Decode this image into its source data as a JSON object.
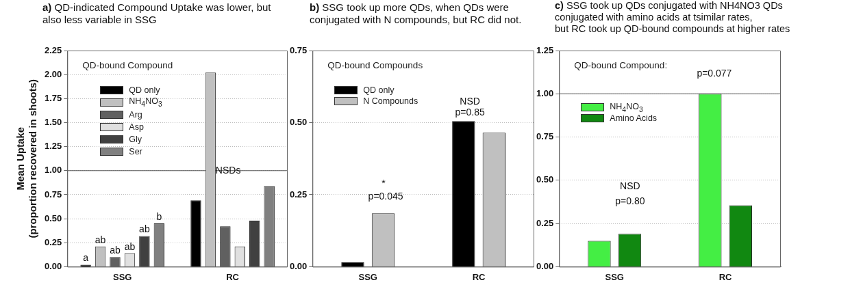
{
  "chart_data": [
    {
      "type": "bar",
      "title": "a) QD-indicated Compound Uptake was lower, but also less variable in SSG",
      "ylabel": "Mean Uptake\n(proportion recovered in shoots)",
      "legend_title": "QD-bound Compound",
      "legend": "top left",
      "grid": "y",
      "categories": [
        "SSG",
        "RC"
      ],
      "ylim": [
        0,
        2.25
      ],
      "yticks": [
        {
          "value": 0,
          "label": "0.00"
        },
        {
          "value": 0.25,
          "label": "0.25"
        },
        {
          "value": 0.5,
          "label": "0.50"
        },
        {
          "value": 0.75,
          "label": "0.75"
        },
        {
          "value": 1,
          "label": "1.00"
        },
        {
          "value": 1.25,
          "label": "1.25"
        },
        {
          "value": 1.5,
          "label": "1.50"
        },
        {
          "value": 1.75,
          "label": "1.75"
        },
        {
          "value": 2,
          "label": "2.00"
        },
        {
          "value": 2.25,
          "label": "2.25"
        }
      ],
      "series": [
        {
          "name": "QD only",
          "color": "#000000",
          "values": [
            0.02,
            0.69
          ],
          "value_labels": [
            "a",
            null
          ]
        },
        {
          "name": "NH$_{4}$NO$_{3}$",
          "color": "#c0c0c0",
          "values": [
            0.21,
            2.02
          ],
          "value_labels": [
            "ab",
            null
          ]
        },
        {
          "name": "Arg",
          "color": "#606060",
          "values": [
            0.1,
            0.42
          ],
          "value_labels": [
            "ab",
            null
          ]
        },
        {
          "name": "Asp",
          "color": "#e0e0e0",
          "values": [
            0.14,
            0.21
          ],
          "value_labels": [
            "ab",
            null
          ]
        },
        {
          "name": "Gly",
          "color": "#404040",
          "values": [
            0.32,
            0.48
          ],
          "value_labels": [
            "ab",
            null
          ]
        },
        {
          "name": "Ser",
          "color": "#808080",
          "values": [
            0.45,
            0.84
          ],
          "value_labels": [
            "b",
            null
          ]
        }
      ],
      "ref_lines": [
        {
          "axis": "y",
          "value": 1
        }
      ],
      "annotations": [
        "NSDs"
      ]
    },
    {
      "type": "bar",
      "title": "b) SSG took up more QDs, when QDs were conjugated with N compounds, but RC did not.",
      "legend_title": "QD-bound Compounds",
      "legend": "top left",
      "grid": "y",
      "categories": [
        "SSG",
        "RC"
      ],
      "ylim": [
        0,
        0.75
      ],
      "yticks": [
        {
          "value": 0,
          "label": "0.00"
        },
        {
          "value": 0.25,
          "label": "0.25"
        },
        {
          "value": 0.5,
          "label": "0.50"
        },
        {
          "value": 0.75,
          "label": "0.75"
        }
      ],
      "series": [
        {
          "name": "QD only",
          "color": "#000000",
          "values": [
            0.015,
            0.505
          ]
        },
        {
          "name": "N Compounds",
          "color": "#c0c0c0",
          "values": [
            0.185,
            0.465
          ]
        }
      ],
      "annotations": [
        "*",
        "p=0.045",
        "NSD",
        "p=0.85"
      ]
    },
    {
      "type": "bar",
      "title": "c) SSG took up QDs conjugated with NH4NO3 QDs\nconjugated with amino acids at tsimilar rates,\nbut RC took up QD-bound compounds at higher rates",
      "legend_title": "QD-bound Compound:",
      "legend": "top left",
      "grid": "y",
      "categories": [
        "SSG",
        "RC"
      ],
      "ylim": [
        0,
        1.25
      ],
      "yticks": [
        {
          "value": 0,
          "label": "0.00"
        },
        {
          "value": 0.25,
          "label": "0.25"
        },
        {
          "value": 0.5,
          "label": "0.50"
        },
        {
          "value": 0.75,
          "label": "0.75"
        },
        {
          "value": 1,
          "label": "1.00"
        },
        {
          "value": 1.25,
          "label": "1.25"
        }
      ],
      "series": [
        {
          "name": "NH$_{4}$NO$_{3}$",
          "color": "#44ee44",
          "values": [
            0.15,
            1.0
          ]
        },
        {
          "name": "Amino Acids",
          "color": "#118811",
          "values": [
            0.19,
            0.355
          ]
        }
      ],
      "ref_lines": [
        {
          "axis": "y",
          "value": 1
        }
      ],
      "annotations": [
        "NSD",
        "p=0.80",
        "p=0.077"
      ]
    }
  ]
}
